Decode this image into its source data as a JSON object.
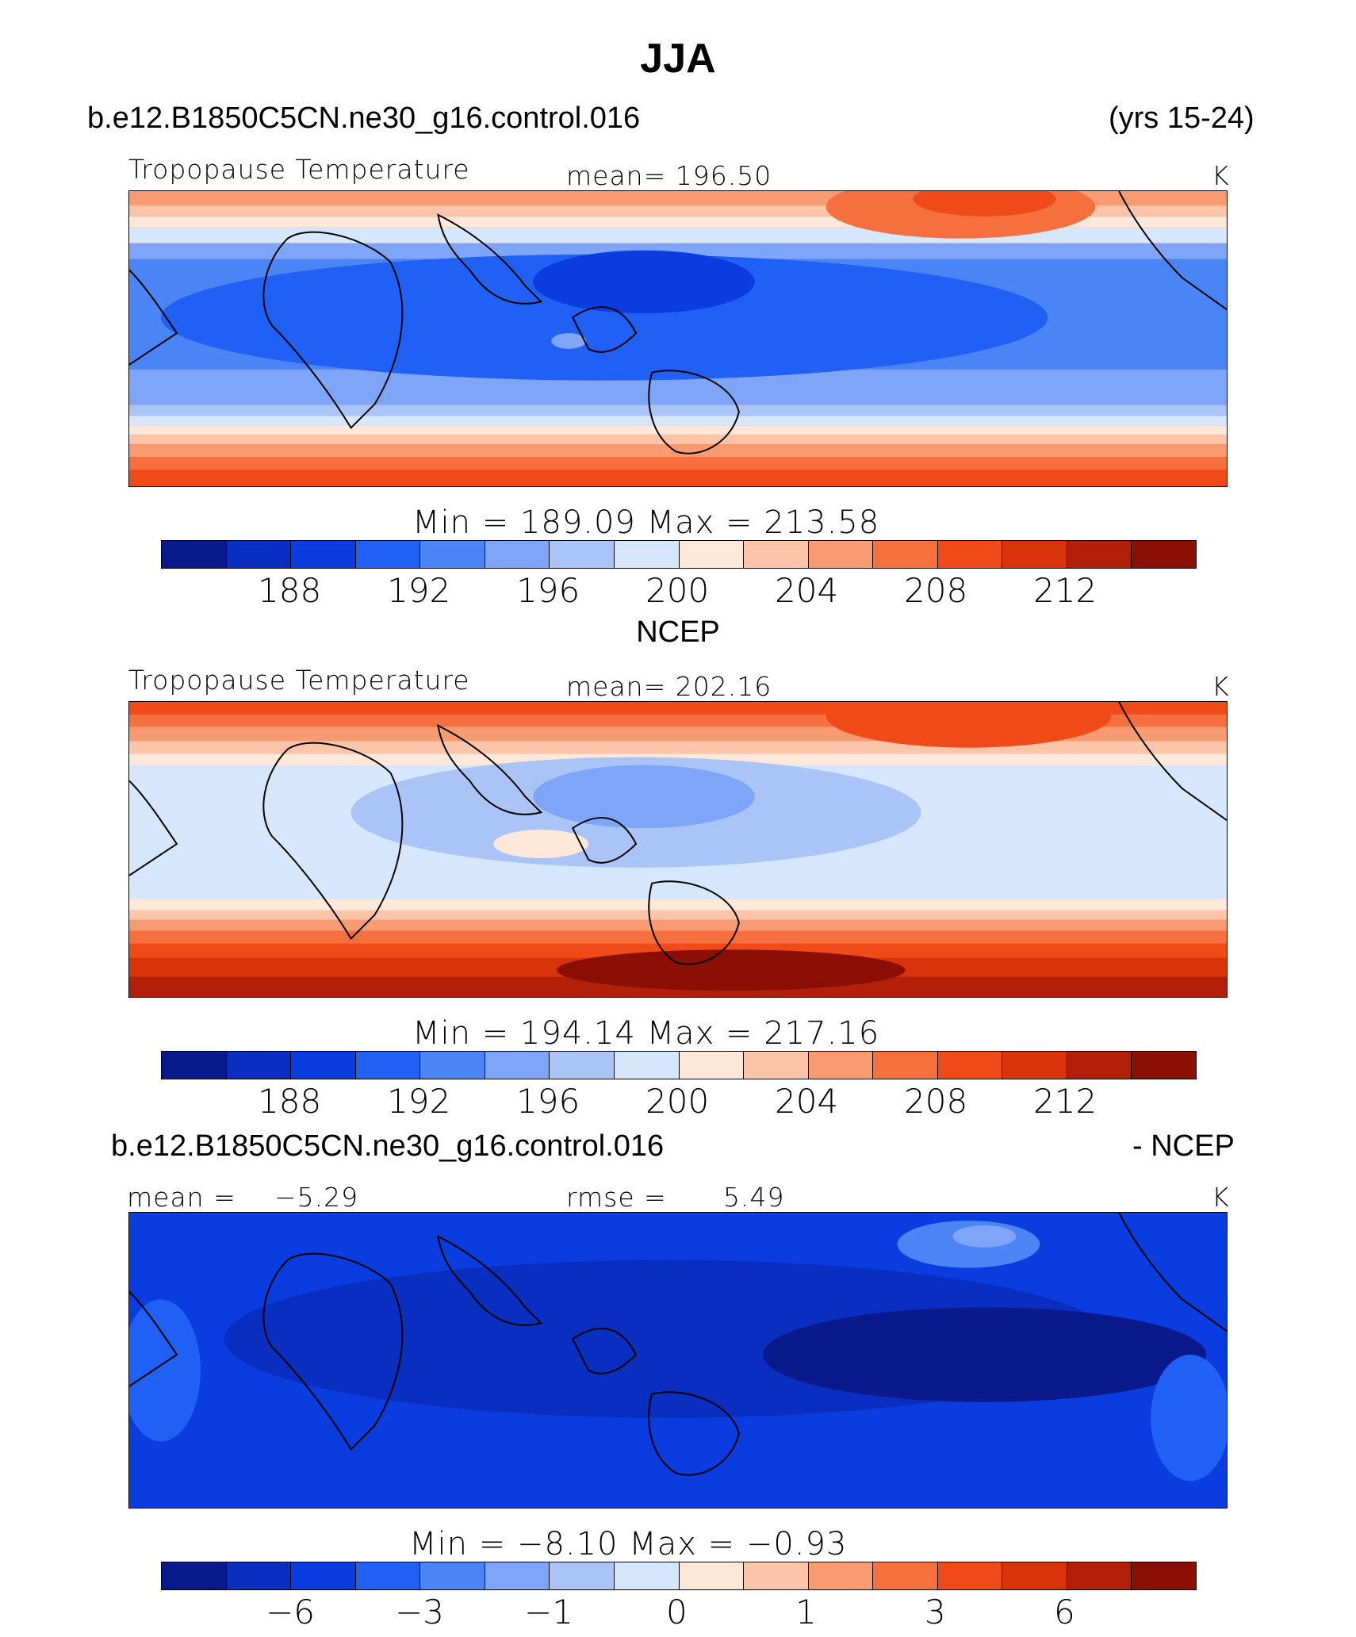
{
  "title": "JJA",
  "case_name": "b.e12.B1850C5CN.ne30_g16.control.016",
  "years": "(yrs 15-24)",
  "colors": [
    "#0a1a8c",
    "#0a2ec0",
    "#0b3ce0",
    "#2060f5",
    "#4a84f5",
    "#7ea5f7",
    "#aac4f8",
    "#d6e6fb",
    "#fde8da",
    "#fcc4a8",
    "#f99b72",
    "#f6703f",
    "#ef4a18",
    "#d9330c",
    "#b3200a",
    "#8c0f06"
  ],
  "panels": [
    {
      "header_left": "b.e12.B1850C5CN.ne30_g16.control.016",
      "header_right": "(yrs 15-24)",
      "field_label": "Tropopause Temperature",
      "mean_text": "mean= 196.50",
      "units": "K",
      "minmax_text": "Min = 189.09 Max = 213.58",
      "ticks": [
        "188",
        "192",
        "196",
        "200",
        "204",
        "208",
        "212"
      ]
    },
    {
      "header_left": "NCEP",
      "field_label": "Tropopause Temperature",
      "mean_text": "mean= 202.16",
      "units": "K",
      "minmax_text": "Min = 194.14 Max = 217.16",
      "ticks": [
        "188",
        "192",
        "196",
        "200",
        "204",
        "208",
        "212"
      ]
    },
    {
      "header_left": "b.e12.B1850C5CN.ne30_g16.control.016",
      "header_right": "- NCEP",
      "mean_label": "mean =",
      "mean_value": "−5.29",
      "rmse_label": "rmse =",
      "rmse_value": "5.49",
      "units": "K",
      "minmax_text": "Min = −8.10 Max = −0.93",
      "ticks": [
        "−6",
        "−3",
        "−1",
        "0",
        "1",
        "3",
        "6"
      ]
    }
  ],
  "chart_data": [
    {
      "type": "heatmap",
      "title": "Tropopause Temperature",
      "units": "K",
      "mean": 196.5,
      "min": 189.09,
      "max": 213.58,
      "colorbar_levels": [
        186,
        188,
        190,
        192,
        194,
        196,
        198,
        200,
        202,
        204,
        206,
        208,
        210,
        212,
        214
      ],
      "colorbar_tick_labels": [
        188,
        192,
        196,
        200,
        204,
        208,
        212
      ]
    },
    {
      "type": "heatmap",
      "title": "Tropopause Temperature",
      "source": "NCEP",
      "units": "K",
      "mean": 202.16,
      "min": 194.14,
      "max": 217.16,
      "colorbar_levels": [
        186,
        188,
        190,
        192,
        194,
        196,
        198,
        200,
        202,
        204,
        206,
        208,
        210,
        212,
        214
      ],
      "colorbar_tick_labels": [
        188,
        192,
        196,
        200,
        204,
        208,
        212
      ]
    },
    {
      "type": "heatmap",
      "title": "b.e12.B1850C5CN.ne30_g16.control.016 - NCEP",
      "units": "K",
      "mean": -5.29,
      "rmse": 5.49,
      "min": -8.1,
      "max": -0.93,
      "colorbar_tick_labels": [
        -6,
        -3,
        -1,
        0,
        1,
        3,
        6
      ]
    }
  ]
}
